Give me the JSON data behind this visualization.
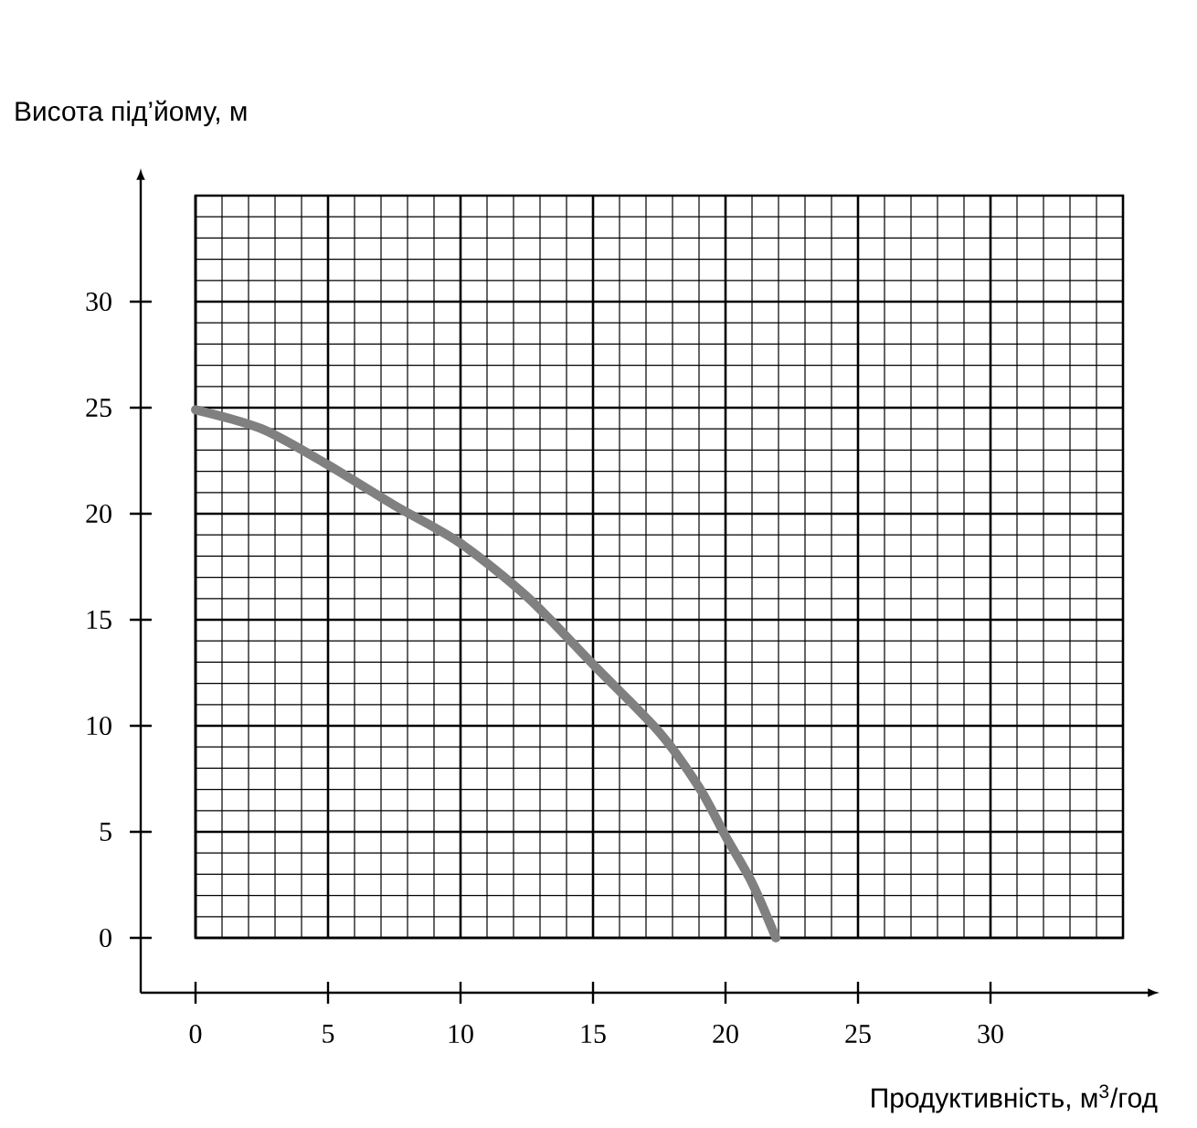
{
  "chart_data": {
    "type": "line",
    "xlabel": "Продуктивність, м$^{3}$/год",
    "ylabel": "Висота під’йому, м",
    "x": [
      0,
      2.5,
      5,
      7.5,
      10,
      12.5,
      15,
      17.5,
      19,
      20,
      21,
      21.9
    ],
    "series": [
      {
        "color": "#808080",
        "values": [
          24.9,
          24.0,
          22.3,
          20.4,
          18.6,
          16.1,
          12.9,
          9.7,
          7.1,
          4.8,
          2.6,
          0
        ]
      }
    ],
    "xlim": [
      0,
      35
    ],
    "ylim": [
      0,
      35
    ],
    "xticks": [
      0,
      5,
      10,
      15,
      20,
      25,
      30
    ],
    "yticks": [
      0,
      5,
      10,
      15,
      20,
      25,
      30
    ],
    "grid": true,
    "marker": "none",
    "line_style": "solid"
  }
}
